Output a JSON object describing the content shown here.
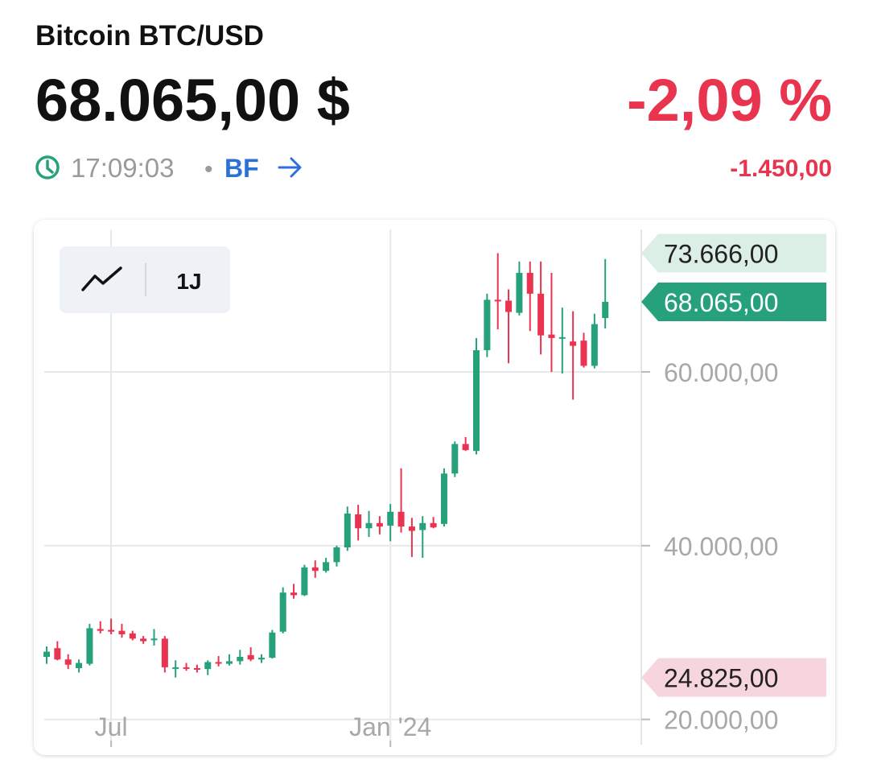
{
  "header": {
    "title": "Bitcoin BTC/USD",
    "price": "68.065,00 $",
    "change_percent": "-2,09 %",
    "time": "17:09:03",
    "separator": "•",
    "source": "BF",
    "change_absolute": "-1.450,00"
  },
  "toolbar": {
    "range": "1J"
  },
  "chart_data": {
    "type": "candlestick",
    "categories": [
      null,
      null,
      null,
      null,
      null,
      null,
      "Jul",
      null,
      null,
      null,
      null,
      null,
      null,
      null,
      null,
      null,
      null,
      null,
      null,
      null,
      null,
      null,
      null,
      null,
      null,
      null,
      null,
      null,
      null,
      null,
      null,
      null,
      "Jan '24",
      null,
      null,
      null,
      null,
      null,
      null,
      null,
      null,
      null,
      null,
      null,
      null,
      null,
      null,
      null,
      null,
      null,
      null,
      null,
      null
    ],
    "open": [
      27200,
      28200,
      26900,
      25900,
      26400,
      30400,
      30300,
      30200,
      29900,
      29300,
      29200,
      29300,
      26000,
      26000,
      25900,
      25800,
      26600,
      26400,
      26700,
      27400,
      26900,
      27100,
      30100,
      34600,
      34300,
      37500,
      37100,
      38100,
      39800,
      43600,
      42000,
      42600,
      42300,
      43900,
      42200,
      41800,
      42600,
      42500,
      48300,
      51700,
      50900,
      62500,
      68300,
      68200,
      66800,
      71400,
      69000,
      64300,
      63900,
      63500,
      63600,
      60700,
      66200
    ],
    "high": [
      28400,
      29000,
      27500,
      26900,
      31000,
      31300,
      31600,
      31000,
      30200,
      29600,
      30400,
      29600,
      26800,
      26500,
      26300,
      26800,
      27300,
      27500,
      28000,
      28300,
      27500,
      30300,
      35200,
      35600,
      37800,
      38300,
      38600,
      40000,
      44500,
      44700,
      44000,
      43400,
      44800,
      48900,
      43200,
      43400,
      43300,
      48900,
      52000,
      52500,
      63900,
      69000,
      73666,
      69500,
      72700,
      72700,
      72700,
      71400,
      67400,
      67000,
      64500,
      66700,
      73000
    ],
    "low": [
      26400,
      26800,
      25800,
      25400,
      26200,
      29900,
      29800,
      29400,
      29100,
      28700,
      28500,
      25400,
      24825,
      25600,
      25400,
      25100,
      26100,
      26200,
      26300,
      26700,
      26500,
      27000,
      29900,
      33900,
      34200,
      36300,
      36900,
      37600,
      39400,
      40600,
      41000,
      41300,
      40500,
      41500,
      38700,
      38600,
      42000,
      42200,
      47900,
      50900,
      50500,
      61700,
      64900,
      61000,
      66500,
      64700,
      62000,
      60000,
      59800,
      56800,
      60500,
      60400,
      65000
    ],
    "close": [
      27800,
      26900,
      26300,
      26500,
      30500,
      30200,
      30100,
      29800,
      29300,
      29000,
      29300,
      26000,
      26000,
      25900,
      25800,
      26600,
      26500,
      26700,
      27200,
      26900,
      27100,
      30000,
      34600,
      34300,
      37500,
      37100,
      38100,
      39800,
      43700,
      42000,
      42600,
      42200,
      43900,
      42200,
      41700,
      42600,
      42100,
      48300,
      51700,
      51000,
      62500,
      68300,
      68200,
      66900,
      71400,
      69000,
      64200,
      63900,
      64000,
      63000,
      60700,
      65500,
      68065
    ],
    "up_color": "#26a17b",
    "down_color": "#ea3350",
    "ylim": [
      17100,
      76400
    ],
    "yticks": [
      {
        "value": 20000,
        "label": "20.000,00"
      },
      {
        "value": 40000,
        "label": "40.000,00"
      },
      {
        "value": 60000,
        "label": "60.000,00"
      }
    ],
    "grid": true,
    "high_tag": {
      "value": 73666,
      "label": "73.666,00"
    },
    "last_tag": {
      "value": 68065,
      "label": "68.065,00"
    },
    "low_tag": {
      "value": 24825,
      "label": "24.825,00"
    }
  }
}
